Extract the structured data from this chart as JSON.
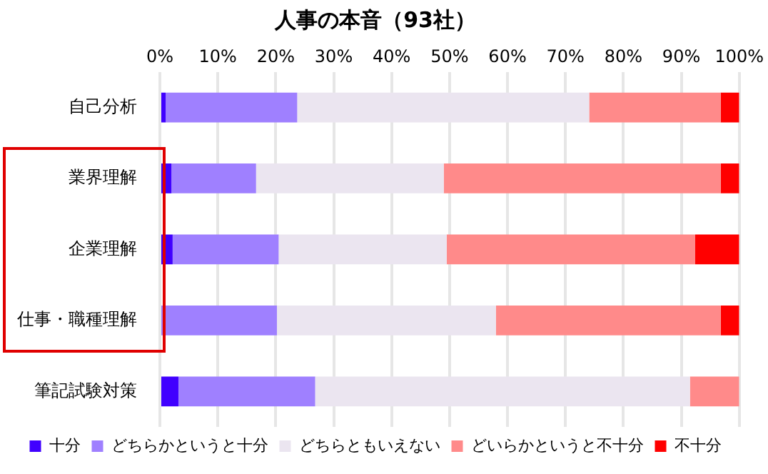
{
  "chart_data": {
    "type": "bar",
    "orientation": "horizontal",
    "stacked": true,
    "title": "人事の本音（93社）",
    "categories": [
      "自己分析",
      "業界理解",
      "企業理解",
      "仕事・職種理解",
      "筆記試験対策"
    ],
    "series": [
      {
        "name": "十分",
        "color": "#4000ff",
        "values": [
          1.0,
          2.0,
          2.2,
          0,
          3.2
        ]
      },
      {
        "name": "どちらかというと十分",
        "color": "#9f80ff",
        "values": [
          22.7,
          14.6,
          18.3,
          20.2,
          23.6
        ]
      },
      {
        "name": "どちらともいえない",
        "color": "#ebe5f0",
        "values": [
          50.4,
          32.4,
          29.0,
          37.8,
          64.7
        ]
      },
      {
        "name": "どいらかというと不十分",
        "color": "#ff8a8a",
        "values": [
          22.7,
          47.8,
          42.9,
          38.8,
          8.5
        ]
      },
      {
        "name": "不十分",
        "color": "#ff0000",
        "values": [
          3.2,
          3.2,
          7.6,
          3.2,
          0
        ]
      }
    ],
    "xlim": [
      0,
      100
    ],
    "xticks": [
      {
        "value": 0,
        "label": "0%"
      },
      {
        "value": 10,
        "label": "10%"
      },
      {
        "value": 20,
        "label": "20%"
      },
      {
        "value": 30,
        "label": "30%"
      },
      {
        "value": 40,
        "label": "40%"
      },
      {
        "value": 50,
        "label": "50%"
      },
      {
        "value": 60,
        "label": "60%"
      },
      {
        "value": 70,
        "label": "70%"
      },
      {
        "value": 80,
        "label": "80%"
      },
      {
        "value": 90,
        "label": "90%"
      },
      {
        "value": 100,
        "label": "100%"
      }
    ],
    "grid": "x",
    "legend": "bottom"
  }
}
